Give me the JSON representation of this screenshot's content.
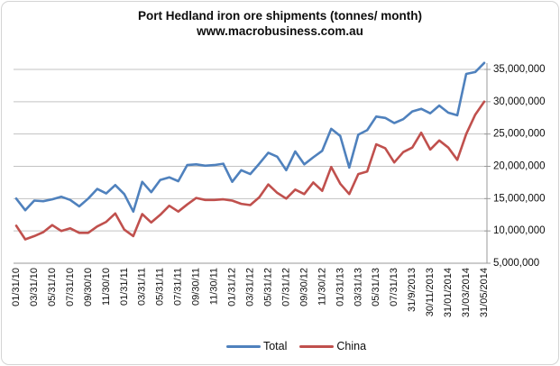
{
  "chart_data": {
    "type": "line",
    "title": "Port Hedland iron ore shipments (tonnes/ month)",
    "subtitle": "www.macrobusiness.com.au",
    "y_unit": "tonnes",
    "values_unit": "millions of tonnes per month",
    "ylim": [
      5000000,
      35000000
    ],
    "y_tick_labels": [
      "35,000,000",
      "30,000,000",
      "25,000,000",
      "20,000,000",
      "15,000,000",
      "10,000,000",
      "5,000,000"
    ],
    "y_tick_values_millions": [
      35,
      30,
      25,
      20,
      15,
      10,
      5
    ],
    "grid": "horizontal",
    "legend_position": "bottom",
    "x_start": "Jan 2010",
    "x_end": "May 2014",
    "x_frequency": "monthly",
    "x_tick_every": 2,
    "x_tick_labels": [
      "01/31/10",
      "03/31/10",
      "05/31/10",
      "07/31/10",
      "09/30/10",
      "11/30/10",
      "01/31/11",
      "03/31/11",
      "05/31/11",
      "07/31/11",
      "09/30/11",
      "11/30/11",
      "01/31/12",
      "03/31/12",
      "05/31/12",
      "07/31/12",
      "09/30/12",
      "11/30/12",
      "01/31/13",
      "03/31/13",
      "05/31/13",
      "07/31/13",
      "31/9/2013",
      "30/11/2013",
      "31/01/2014",
      "31/03/2014",
      "31/05/2014"
    ],
    "series": [
      {
        "name": "Total",
        "color": "#4f81bd",
        "values_millions": [
          15.0,
          13.2,
          14.7,
          14.6,
          14.9,
          15.3,
          14.8,
          13.8,
          15.0,
          16.5,
          15.8,
          17.1,
          15.7,
          13.0,
          17.6,
          16.0,
          17.9,
          18.3,
          17.7,
          20.2,
          20.3,
          20.1,
          20.2,
          20.4,
          17.6,
          19.4,
          18.8,
          20.4,
          22.1,
          21.5,
          19.4,
          22.3,
          20.3,
          21.4,
          22.4,
          25.8,
          24.7,
          19.8,
          24.9,
          25.6,
          27.7,
          27.5,
          26.7,
          27.3,
          28.5,
          28.9,
          28.2,
          29.4,
          28.3,
          27.9,
          34.3,
          34.6,
          36.0
        ]
      },
      {
        "name": "China",
        "color": "#c0504d",
        "values_millions": [
          10.8,
          8.7,
          9.2,
          9.8,
          10.9,
          10.0,
          10.4,
          9.7,
          9.7,
          10.7,
          11.4,
          12.7,
          10.2,
          9.2,
          12.6,
          11.3,
          12.5,
          13.9,
          13.0,
          14.1,
          15.1,
          14.8,
          14.8,
          14.9,
          14.7,
          14.2,
          14.0,
          15.2,
          17.2,
          15.9,
          15.0,
          16.4,
          15.7,
          17.5,
          16.2,
          19.9,
          17.3,
          15.7,
          18.8,
          19.2,
          23.4,
          22.8,
          20.6,
          22.2,
          22.9,
          25.2,
          22.6,
          24.0,
          22.9,
          21.0,
          25.0,
          28.0,
          30.0
        ]
      }
    ],
    "colors": {
      "gridline": "#c3c3c3",
      "axis": "#9a9a9a",
      "text": "#0d0d0d"
    }
  }
}
